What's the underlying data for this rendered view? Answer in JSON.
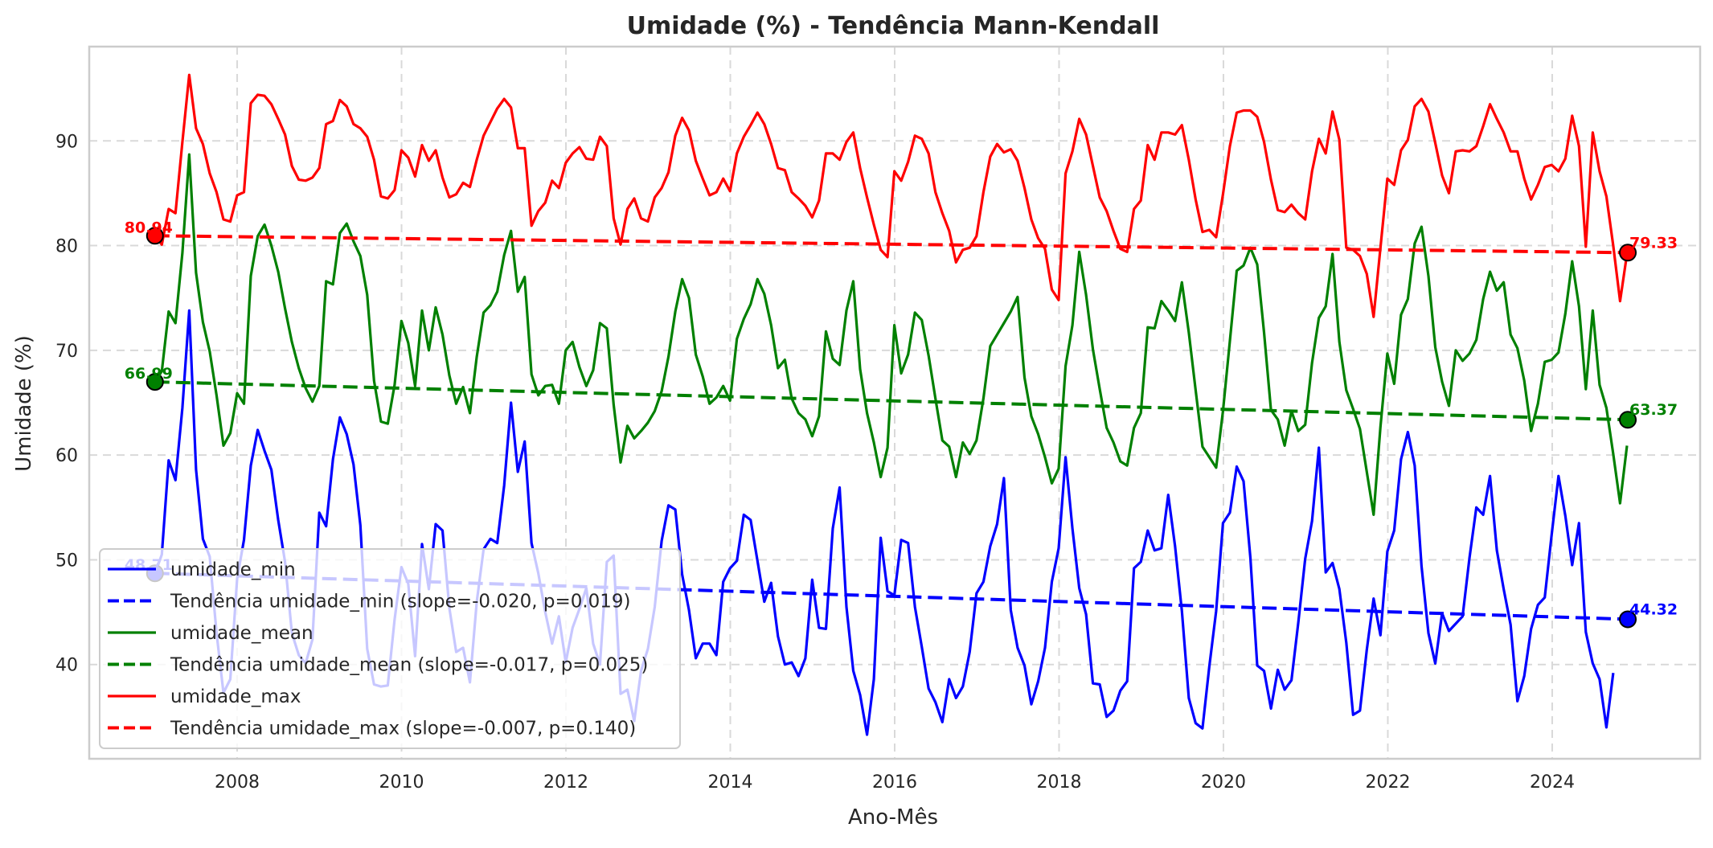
{
  "chart_data": {
    "type": "line",
    "title": "Umidade (%) - Tendência Mann-Kendall",
    "xlabel": "Ano-Mês",
    "ylabel": "Umidade (%)",
    "xlim": [
      2006.2,
      2025.8
    ],
    "ylim": [
      31,
      99
    ],
    "x_ticks": [
      2008,
      2010,
      2012,
      2014,
      2016,
      2018,
      2020,
      2022,
      2024
    ],
    "y_ticks": [
      40,
      50,
      60,
      70,
      80,
      90
    ],
    "grid": true,
    "legend_position": "lower-left",
    "series": [
      {
        "name": "umidade_min",
        "color": "#0000ff",
        "x_start": 2007.0,
        "x_step": 0.0833,
        "values": [
          48.7,
          50.5,
          59.5,
          57.6,
          64.5,
          73.8,
          58.6,
          52.0,
          50.3,
          43.0,
          37.3,
          38.6,
          48.2,
          51.9,
          59.0,
          62.4,
          60.4,
          58.6,
          53.8,
          49.8,
          43.0,
          40.9,
          40.1,
          42.4,
          54.5,
          53.2,
          59.6,
          63.6,
          62.0,
          59.1,
          53.3,
          41.5,
          38.1,
          37.9,
          38.0,
          44.3,
          49.3,
          47.7,
          40.8,
          51.5,
          47.2,
          53.4,
          52.8,
          45.4,
          41.2,
          41.6,
          38.3,
          46.0,
          51.0,
          52.0,
          51.6,
          57.1,
          65.0,
          58.4,
          61.3,
          51.6,
          48.7,
          45.0,
          42.0,
          44.6,
          40.2,
          43.5,
          45.3,
          47.3,
          42.0,
          40.0,
          49.8,
          50.4,
          37.2,
          37.6,
          34.6,
          39.4,
          41.5,
          45.5,
          51.8,
          55.2,
          54.8,
          48.6,
          45.2,
          40.6,
          42.0,
          42.0,
          40.9,
          47.9,
          49.2,
          49.9,
          54.3,
          53.8,
          49.9,
          46.0,
          47.8,
          42.7,
          40.0,
          40.2,
          38.9,
          40.6,
          48.1,
          43.5,
          43.4,
          53.0,
          56.9,
          45.5,
          39.4,
          37.1,
          33.3,
          38.6,
          52.1,
          47.0,
          46.6,
          51.9,
          51.6,
          45.5,
          41.7,
          37.7,
          36.4,
          34.5,
          38.6,
          36.8,
          37.9,
          41.2,
          46.8,
          47.9,
          51.3,
          53.4,
          57.8,
          45.2,
          41.6,
          39.9,
          36.2,
          38.4,
          41.6,
          47.9,
          51.1,
          59.8,
          53.0,
          47.3,
          44.8,
          38.2,
          38.1,
          35.0,
          35.6,
          37.5,
          38.4,
          49.2,
          49.8,
          52.8,
          50.9,
          51.1,
          56.2,
          51.3,
          45.1,
          36.8,
          34.4,
          33.9,
          39.8,
          45.1,
          53.5,
          54.5,
          58.9,
          57.5,
          50.2,
          39.9,
          39.4,
          35.8,
          39.5,
          37.6,
          38.5,
          44.0,
          50.1,
          53.7,
          60.7,
          48.8,
          49.7,
          47.2,
          42.1,
          35.2,
          35.6,
          41.4,
          46.3,
          42.8,
          50.8,
          52.8,
          59.6,
          62.2,
          59.0,
          49.4,
          43.0,
          40.1,
          44.9,
          43.2,
          43.9,
          44.6,
          50.2,
          55.0,
          54.3,
          58.0,
          50.9,
          47.2,
          43.8,
          36.5,
          38.9,
          43.4,
          45.7,
          46.4,
          52.4,
          58.0,
          54.2,
          49.5,
          53.5,
          43.1,
          40.1,
          38.6,
          34.0,
          39.2
        ]
      },
      {
        "name": "Tendência umidade_min (slope=-0.020, p=0.019)",
        "color": "#0000ff",
        "dashed": true,
        "x": [
          2007.0,
          2024.92
        ],
        "values": [
          48.71,
          44.32
        ]
      },
      {
        "name": "umidade_mean",
        "color": "#008000",
        "x_start": 2007.0,
        "x_step": 0.0833,
        "values": [
          67.0,
          68.0,
          73.7,
          72.6,
          79.3,
          88.7,
          77.4,
          72.7,
          69.9,
          65.7,
          60.9,
          62.1,
          65.9,
          64.9,
          77.1,
          80.9,
          82.0,
          80.0,
          77.5,
          74.0,
          70.8,
          68.3,
          66.4,
          65.1,
          66.6,
          76.6,
          76.3,
          81.2,
          82.1,
          80.4,
          79.0,
          75.3,
          67.1,
          63.2,
          63.0,
          66.7,
          72.8,
          70.7,
          66.6,
          73.8,
          70.0,
          74.1,
          71.5,
          67.6,
          64.9,
          66.5,
          64.0,
          69.4,
          73.6,
          74.3,
          75.6,
          79.1,
          81.4,
          75.6,
          77.0,
          67.7,
          65.7,
          66.6,
          66.7,
          64.9,
          70.0,
          70.8,
          68.4,
          66.6,
          68.1,
          72.6,
          72.1,
          64.8,
          59.3,
          62.8,
          61.6,
          62.3,
          63.1,
          64.2,
          66.1,
          69.4,
          73.7,
          76.8,
          75.0,
          69.6,
          67.5,
          64.9,
          65.5,
          66.6,
          65.2,
          71.1,
          73.0,
          74.4,
          76.8,
          75.4,
          72.4,
          68.3,
          69.1,
          65.4,
          64.0,
          63.4,
          61.8,
          63.7,
          71.8,
          69.2,
          68.6,
          73.8,
          76.6,
          68.2,
          64.0,
          61.2,
          57.9,
          60.7,
          72.4,
          67.8,
          69.6,
          73.6,
          72.9,
          69.5,
          65.4,
          61.4,
          60.8,
          57.9,
          61.2,
          60.1,
          61.4,
          65.4,
          70.4,
          71.5,
          72.6,
          73.7,
          75.1,
          67.4,
          63.7,
          62.0,
          59.8,
          57.3,
          58.7,
          68.5,
          72.4,
          79.4,
          75.3,
          70.1,
          66.3,
          62.6,
          61.2,
          59.4,
          59.0,
          62.6,
          64.0,
          72.2,
          72.1,
          74.7,
          73.8,
          72.8,
          76.5,
          71.7,
          66.2,
          60.8,
          59.8,
          58.8,
          64.2,
          70.9,
          77.6,
          78.1,
          79.8,
          78.2,
          71.7,
          64.3,
          63.4,
          60.9,
          64.2,
          62.3,
          62.9,
          68.8,
          73.1,
          74.2,
          79.2,
          70.8,
          66.2,
          64.4,
          62.5,
          58.4,
          54.3,
          62.7,
          69.7,
          66.8,
          73.4,
          74.9,
          80.2,
          81.8,
          77.1,
          70.3,
          67.0,
          64.7,
          70.0,
          69.0,
          69.7,
          71.0,
          74.9,
          77.5,
          75.7,
          76.5,
          71.5,
          70.2,
          67.1,
          62.3,
          64.9,
          68.9,
          69.1,
          69.8,
          73.5,
          78.5,
          74.2,
          66.3,
          73.8,
          66.7,
          64.5,
          60.1,
          55.4,
          60.9
        ]
      },
      {
        "name": "Tendência umidade_mean (slope=-0.017, p=0.025)",
        "color": "#008000",
        "dashed": true,
        "x": [
          2007.0,
          2024.92
        ],
        "values": [
          66.99,
          63.37
        ]
      },
      {
        "name": "umidade_max",
        "color": "#ff0000",
        "x_start": 2007.0,
        "x_step": 0.0833,
        "values": [
          81.0,
          80.1,
          83.5,
          83.1,
          89.9,
          96.3,
          91.2,
          89.7,
          86.9,
          85.1,
          82.5,
          82.3,
          84.8,
          85.1,
          93.6,
          94.4,
          94.3,
          93.5,
          92.1,
          90.6,
          87.6,
          86.3,
          86.2,
          86.5,
          87.4,
          91.6,
          91.9,
          93.9,
          93.3,
          91.6,
          91.2,
          90.4,
          88.2,
          84.7,
          84.5,
          85.3,
          89.1,
          88.4,
          86.6,
          89.6,
          88.1,
          89.1,
          86.5,
          84.6,
          84.9,
          86.0,
          85.6,
          88.2,
          90.5,
          91.8,
          93.1,
          94.0,
          93.2,
          89.3,
          89.3,
          81.9,
          83.3,
          84.1,
          86.2,
          85.5,
          87.9,
          88.8,
          89.4,
          88.3,
          88.2,
          90.4,
          89.5,
          82.6,
          80.1,
          83.5,
          84.5,
          82.6,
          82.3,
          84.6,
          85.5,
          87.0,
          90.5,
          92.2,
          91.0,
          88.1,
          86.4,
          84.8,
          85.1,
          86.4,
          85.2,
          88.8,
          90.4,
          91.5,
          92.7,
          91.6,
          89.7,
          87.4,
          87.2,
          85.1,
          84.5,
          83.8,
          82.7,
          84.3,
          88.8,
          88.8,
          88.2,
          89.9,
          90.8,
          87.4,
          84.6,
          82.0,
          79.6,
          78.9,
          87.1,
          86.2,
          88.0,
          90.5,
          90.2,
          88.8,
          85.1,
          83.1,
          81.4,
          78.4,
          79.6,
          79.8,
          80.9,
          85.1,
          88.5,
          89.7,
          88.9,
          89.2,
          88.1,
          85.5,
          82.5,
          80.7,
          79.7,
          75.8,
          74.8,
          86.9,
          89.0,
          92.1,
          90.6,
          87.6,
          84.6,
          83.3,
          81.4,
          79.7,
          79.4,
          83.5,
          84.3,
          89.6,
          88.2,
          90.8,
          90.8,
          90.6,
          91.5,
          88.2,
          84.4,
          81.3,
          81.5,
          80.8,
          84.9,
          89.5,
          92.7,
          92.9,
          92.9,
          92.3,
          89.9,
          86.3,
          83.4,
          83.2,
          83.9,
          83.1,
          82.5,
          87.1,
          90.2,
          88.8,
          92.8,
          90.1,
          79.8,
          79.6,
          79.0,
          77.3,
          73.2,
          79.8,
          86.4,
          85.8,
          89.1,
          90.1,
          93.3,
          94.0,
          92.8,
          89.8,
          86.7,
          85.0,
          89.0,
          89.1,
          89.0,
          89.5,
          91.4,
          93.5,
          92.1,
          90.8,
          89.0,
          89.0,
          86.4,
          84.4,
          85.8,
          87.5,
          87.7,
          87.1,
          88.3,
          92.4,
          89.5,
          79.9,
          90.8,
          87.1,
          84.7,
          80.0,
          74.7,
          79.2
        ]
      },
      {
        "name": "Tendência umidade_max (slope=-0.007, p=0.140)",
        "color": "#ff0000",
        "dashed": true,
        "x": [
          2007.0,
          2024.92
        ],
        "values": [
          80.94,
          79.33
        ]
      }
    ],
    "endpoint_labels": [
      {
        "text": "80.94",
        "color": "#ff0000",
        "x": 2007.0,
        "y": 80.94,
        "side": "left"
      },
      {
        "text": "79.33",
        "color": "#ff0000",
        "x": 2024.92,
        "y": 79.33,
        "side": "right"
      },
      {
        "text": "66.99",
        "color": "#008000",
        "x": 2007.0,
        "y": 66.99,
        "side": "left"
      },
      {
        "text": "63.37",
        "color": "#008000",
        "x": 2024.92,
        "y": 63.37,
        "side": "right"
      },
      {
        "text": "48.71",
        "color": "#0000ff",
        "x": 2007.0,
        "y": 48.71,
        "side": "left"
      },
      {
        "text": "44.32",
        "color": "#0000ff",
        "x": 2024.92,
        "y": 44.32,
        "side": "right"
      }
    ]
  }
}
